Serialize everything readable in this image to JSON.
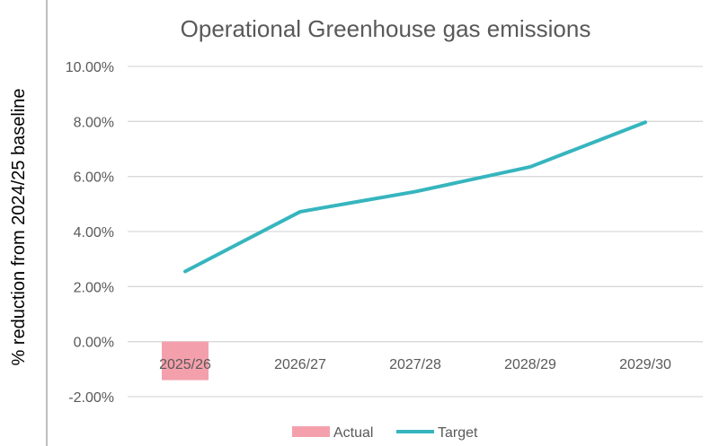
{
  "chart_data": {
    "type": "bar+line",
    "title": "Operational Greenhouse gas emissions",
    "ylabel": "% reduction from 2024/25 baseline",
    "xlabel": "",
    "categories": [
      "2025/26",
      "2026/27",
      "2027/28",
      "2028/29",
      "2029/30"
    ],
    "yticks": [
      "10.00%",
      "8.00%",
      "6.00%",
      "4.00%",
      "2.00%",
      "0.00%",
      "-2.00%"
    ],
    "ylim": [
      -2,
      10
    ],
    "grid": true,
    "legend_position": "bottom",
    "series": [
      {
        "name": "Actual",
        "type": "bar",
        "color": "#F4A0AC",
        "values": [
          -1.4,
          null,
          null,
          null,
          null
        ]
      },
      {
        "name": "Target",
        "type": "line",
        "color": "#36B5BE",
        "values": [
          2.55,
          4.72,
          5.45,
          6.35,
          7.97
        ]
      }
    ]
  }
}
